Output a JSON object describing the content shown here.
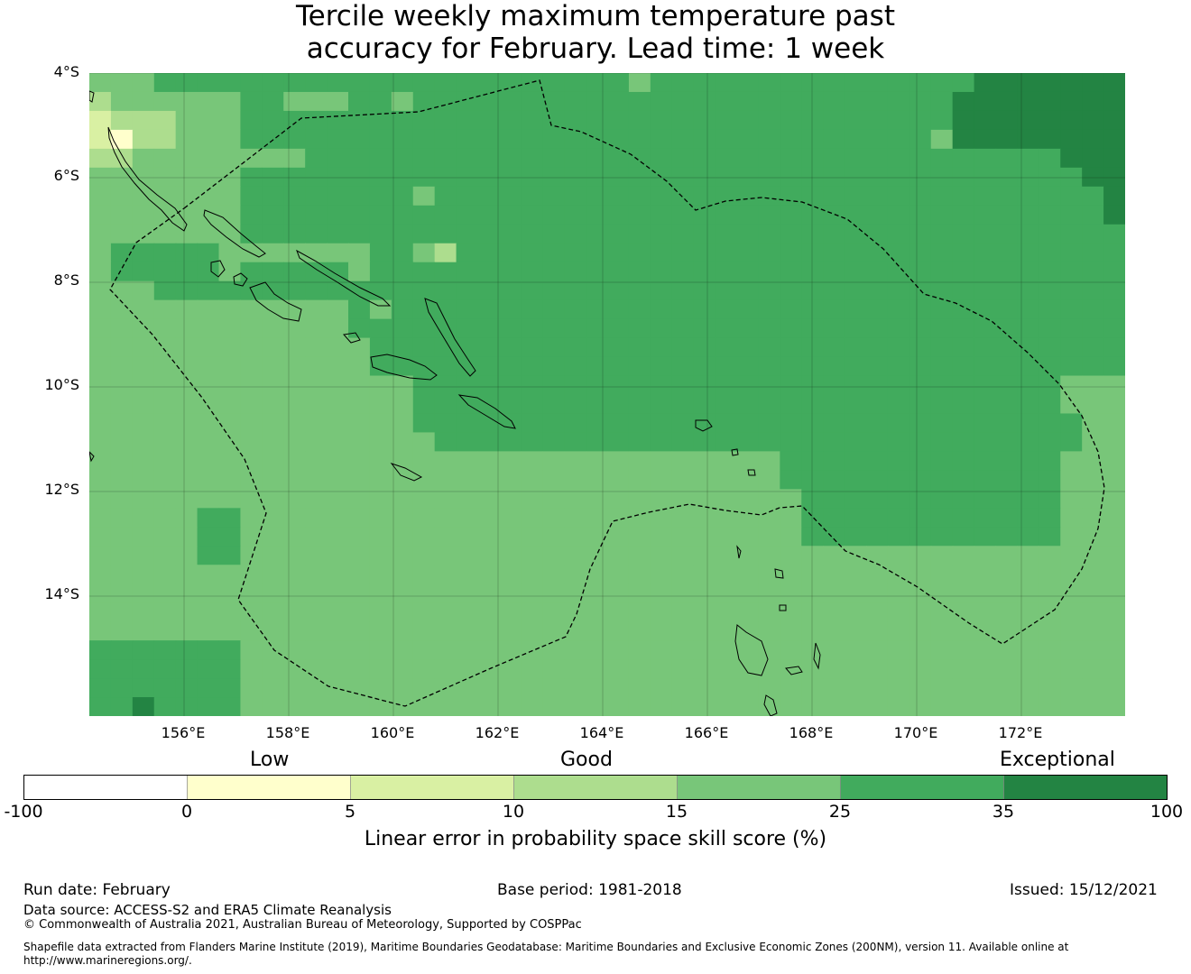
{
  "title_line1": "Tercile weekly maximum temperature past",
  "title_line2": "accuracy for February. Lead time: 1 week",
  "lat_labels": [
    "4°S",
    "6°S",
    "8°S",
    "10°S",
    "12°S",
    "14°S"
  ],
  "lon_labels": [
    "156°E",
    "158°E",
    "160°E",
    "162°E",
    "164°E",
    "166°E",
    "168°E",
    "170°E",
    "172°E"
  ],
  "colorbar": {
    "category_labels": {
      "low": "Low",
      "good": "Good",
      "exceptional": "Exceptional"
    },
    "ticks": [
      "-100",
      "0",
      "5",
      "10",
      "15",
      "25",
      "35",
      "100"
    ],
    "colors": [
      "#ffffff",
      "#ffffcc",
      "#d9f0a3",
      "#addd8e",
      "#78c679",
      "#41ab5d",
      "#238443"
    ],
    "label": "Linear error in probability space skill score (%)"
  },
  "footer": {
    "run_date": "Run date: February",
    "base_period": "Base period: 1981-2018",
    "issued": "Issued: 15/12/2021",
    "data_source": "Data source: ACCESS-S2 and ERA5 Climate Reanalysis",
    "copyright": "© Commonwealth of Australia 2021, Australian Bureau of Meteorology, Supported by COSPPac",
    "shapefile": "Shapefile data extracted from Flanders Marine Institute (2019), Maritime Boundaries Geodatabase: Maritime Boundaries and Exclusive Economic Zones (200NM), version 11. Available online at http://www.marineregions.org/."
  },
  "map_data": {
    "legend": "1=#ffffcc(0-5) 2=#d9f0a3(5-10) 3=#addd8e(10-15) 4=#78c679(15-25) 5=#41ab5d(25-35) 6=#238443(35-100)",
    "grid_rows": [
      "444555555555555555555555545555555555555556666666",
      "344444455444554555555555555555555555555566666666",
      "233344455555555555555555555555555555555566666666",
      "213344455555555555555555555555555555555466666666",
      "334444444455555555555555555555555555555555555666",
      "444444455555555555555555555555555555555555555566",
      "444444455555555455555555555555555555555555555556",
      "444444455555555555555555555555555555555555555556",
      "444444455555555555555555555555555555555555555555",
      "455555444444455435555555555555555555555555555555",
      "455555455555455555555555555555555555555555555555",
      "444555555555555555555555555555555555555555555555",
      "444444444444545555555555555555555555555555555555",
      "444444444444555555555555555555555555555555555555",
      "444444444444455555555555555555555555555555555555",
      "444444444444455555555555555555555555555555555555",
      "444444444444444555555555555555555555555555555444",
      "444444444444444555555555555555555555555555555444",
      "444444444444444555555555555555555555555555555544",
      "444444444444444455555555555555555555555555555544",
      "444444444444444444444444444444445555555555555444",
      "444444444444444444444444444444445555555555555444",
      "444444444444444444444444444444444555555555555444",
      "444445544444444444444444444444444555555555555444",
      "444445544444444444444444444444444555555555555444",
      "444445544444444444444444444444444444444444444444",
      "444444444444444444444444444444444444444444444444",
      "444444444444444444444444444444444444444444444444",
      "444444444444444444444444444444444444444444444444",
      "444444444444444444444444444444444444444444444444",
      "555555544444444444444444444444444444444444444444",
      "555555544444444444444444444444444444444444444444",
      "555555544444444444444444444444444444444444444444",
      "556555544444444444444444444444444444444444444444"
    ]
  }
}
